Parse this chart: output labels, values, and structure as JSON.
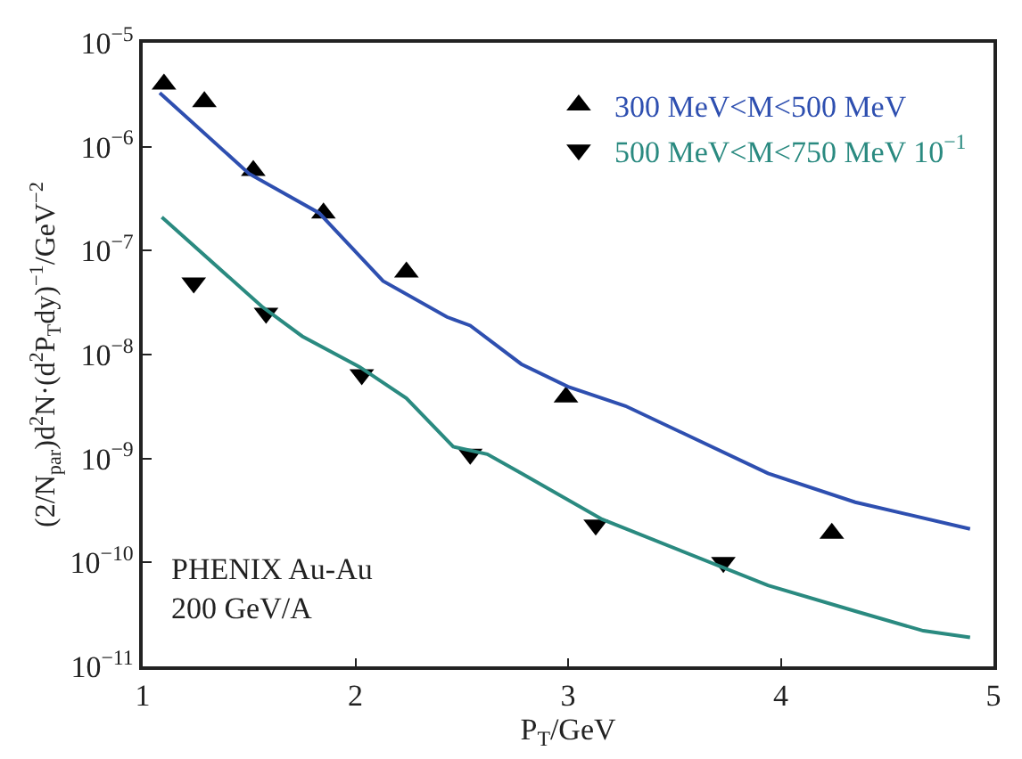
{
  "chart_data": {
    "type": "scatter",
    "xlabel": "P$_{T}$/GeV",
    "ylabel": "(2/N$_{par}$)d$^{2}$N·(d$^{2}$P$_{T}$dy)$^{−1}$/GeV$^{−2}$",
    "log": "y",
    "xlim": [
      1,
      5
    ],
    "xticks": [
      1,
      2,
      3,
      4,
      5
    ],
    "ylim": [
      1e-11,
      1e-05
    ],
    "yticks": [
      {
        "value": 1e-11,
        "label": "10$^{−11}$"
      },
      {
        "value": 1e-10,
        "label": "10$^{−10}$"
      },
      {
        "value": 1e-09,
        "label": "10$^{−9}$"
      },
      {
        "value": 1e-08,
        "label": "10$^{−8}$"
      },
      {
        "value": 1e-07,
        "label": "10$^{−7}$"
      },
      {
        "value": 1e-06,
        "label": "10$^{−6}$"
      },
      {
        "value": 1e-05,
        "label": "10$^{−5}$"
      }
    ],
    "legend": "top right",
    "annotations": [
      "PHENIX Au-Au\n200 GeV/A"
    ],
    "series": [
      {
        "name": "300 MeV<M<500 MeV",
        "marker": "triangle",
        "color": "#000000",
        "x": [
          1.1,
          1.29,
          1.52,
          1.85,
          2.24,
          2.99,
          4.24
        ],
        "values": [
          4e-06,
          2.7e-06,
          5.9e-07,
          2.3e-07,
          6.2e-08,
          3.9e-09,
          1.9e-10
        ]
      },
      {
        "name": "500 MeV<M<750 MeV 10$^{−1}$",
        "marker": "triangle-down",
        "color": "#000000",
        "x": [
          1.24,
          1.58,
          2.03,
          2.54,
          3.13,
          3.73
        ],
        "values": [
          4.9e-08,
          2.5e-08,
          6.4e-09,
          1.1e-09,
          2.3e-10,
          1e-10
        ]
      },
      {
        "type": "line",
        "color": "#2e4fb0",
        "x": [
          1.08,
          1.5,
          1.83,
          2.13,
          2.43,
          2.54,
          2.78,
          3.0,
          3.27,
          3.94,
          4.35,
          4.89
        ],
        "values": [
          3.3e-06,
          5.5e-07,
          2.3e-07,
          5.1e-08,
          2.3e-08,
          1.9e-08,
          8.1e-09,
          4.9e-09,
          3.2e-09,
          7.2e-10,
          3.8e-10,
          2.1e-10
        ]
      },
      {
        "type": "line",
        "color": "#2a8a80",
        "x": [
          1.09,
          1.56,
          1.75,
          2.02,
          2.24,
          2.46,
          2.62,
          2.78,
          3.16,
          3.94,
          4.35,
          4.67,
          4.89
        ],
        "values": [
          2.1e-07,
          2.9e-08,
          1.5e-08,
          7.6e-09,
          3.8e-09,
          1.3e-09,
          1.1e-09,
          7.2e-10,
          2.6e-10,
          6e-11,
          3.4e-11,
          2.2e-11,
          1.9e-11
        ]
      }
    ]
  }
}
